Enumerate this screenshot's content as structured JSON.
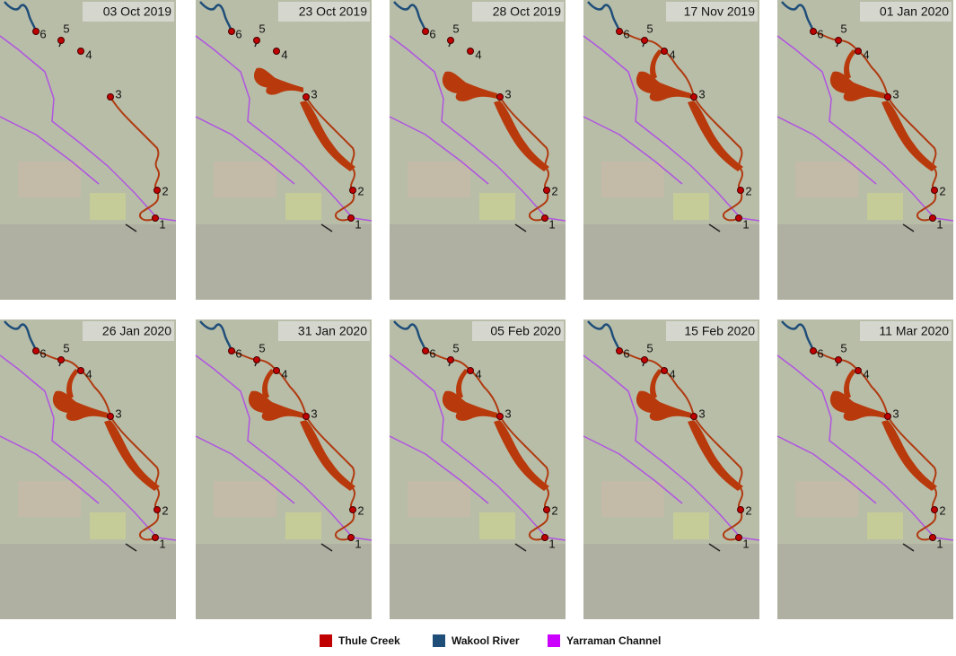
{
  "panels": [
    {
      "date": "03 Oct 2019"
    },
    {
      "date": "23 Oct 2019"
    },
    {
      "date": "28 Oct 2019"
    },
    {
      "date": "17 Nov 2019"
    },
    {
      "date": "01 Jan 2020"
    },
    {
      "date": "26 Jan 2020"
    },
    {
      "date": "31 Jan 2020"
    },
    {
      "date": "05 Feb 2020"
    },
    {
      "date": "15 Feb 2020"
    },
    {
      "date": "11 Mar 2020"
    }
  ],
  "point_labels": [
    "1",
    "2",
    "3",
    "4",
    "5",
    "6"
  ],
  "legend": [
    {
      "name": "Thule Creek",
      "color": "#c00000"
    },
    {
      "name": "Wakool River",
      "color": "#1f4e79"
    },
    {
      "name": "Yarraman Channel",
      "color": "#cc00ff"
    }
  ]
}
